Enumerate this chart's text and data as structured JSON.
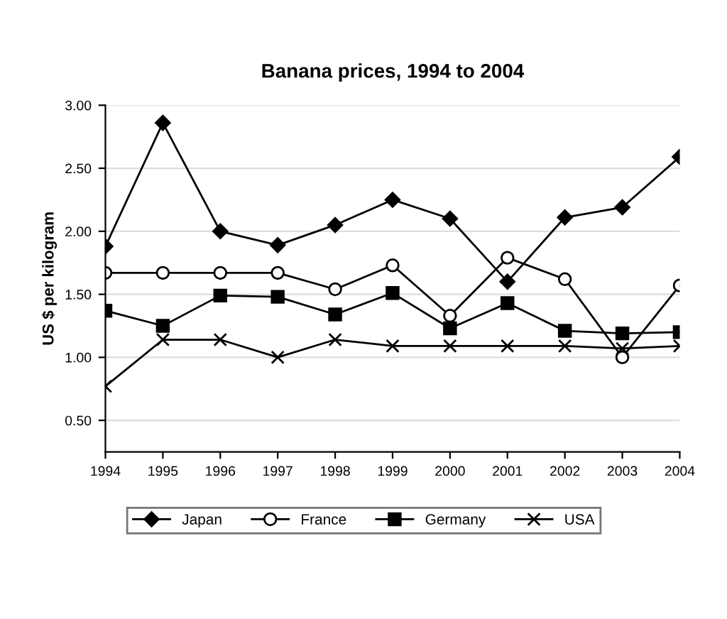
{
  "chart_data": {
    "type": "line",
    "title": "Banana prices, 1994 to 2004",
    "ylabel": "US $ per kilogram",
    "x": [
      1994,
      1995,
      1996,
      1997,
      1998,
      1999,
      2000,
      2001,
      2002,
      2003,
      2004
    ],
    "xlim": [
      1994,
      2004
    ],
    "xticks": [
      1994,
      1995,
      1996,
      1997,
      1998,
      1999,
      2000,
      2001,
      2002,
      2003,
      2004
    ],
    "ylim": [
      0.25,
      3.0
    ],
    "yticks": [
      {
        "value": 0.5,
        "label": "0.50"
      },
      {
        "value": 1.0,
        "label": "1.00"
      },
      {
        "value": 1.5,
        "label": "1.50"
      },
      {
        "value": 2.0,
        "label": "2.00"
      },
      {
        "value": 2.5,
        "label": "2.50"
      },
      {
        "value": 3.0,
        "label": "3.00"
      }
    ],
    "grid": "y",
    "legend": "bottom",
    "line_style": "solid",
    "series": [
      {
        "name": "Japan",
        "color": "#000000",
        "marker": "diamond",
        "values": [
          1.88,
          2.86,
          2.0,
          1.89,
          2.05,
          2.25,
          2.1,
          1.6,
          2.11,
          2.19,
          2.59
        ]
      },
      {
        "name": "France",
        "color": "#000000",
        "marker": "circle",
        "values": [
          1.67,
          1.67,
          1.67,
          1.67,
          1.54,
          1.73,
          1.33,
          1.79,
          1.62,
          1.0,
          1.57
        ]
      },
      {
        "name": "Germany",
        "color": "#000000",
        "marker": "square",
        "values": [
          1.37,
          1.25,
          1.49,
          1.48,
          1.34,
          1.51,
          1.23,
          1.43,
          1.21,
          1.19,
          1.2
        ]
      },
      {
        "name": "USA",
        "color": "#000000",
        "marker": "cross",
        "values": [
          0.77,
          1.14,
          1.14,
          1.0,
          1.14,
          1.09,
          1.09,
          1.09,
          1.09,
          1.07,
          1.09
        ]
      }
    ]
  }
}
